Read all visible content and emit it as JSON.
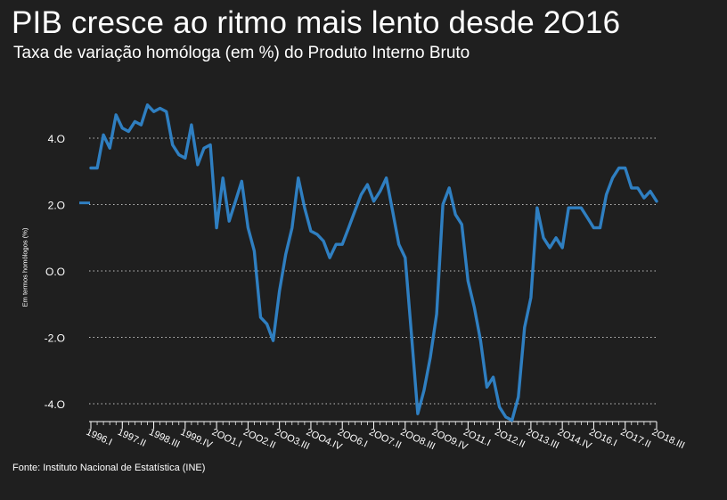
{
  "chart_data": {
    "type": "line",
    "title": "PIB cresce ao ritmo mais lento desde 2O16",
    "subtitle": "Taxa de variação homóloga (em %) do Produto Interno Bruto",
    "ylabel": "Em termos homólogos (%)",
    "xlabel": "",
    "source": "Fonte: Instituto Nacional de Estatística (INE)",
    "ylim": [
      -4.4,
      5.0
    ],
    "yticks": [
      -4.0,
      -2.0,
      0.0,
      2.0,
      4.0
    ],
    "ytick_labels": [
      "-4.O",
      "-2.O",
      "O.O",
      "2.O",
      "4.O"
    ],
    "grid": "horizontal-dotted",
    "color": "#2f7fc1",
    "x_start_index": 0,
    "xtick_indices": [
      0,
      5,
      10,
      15,
      20,
      25,
      30,
      35,
      40,
      45,
      50,
      55,
      60,
      65,
      70,
      75,
      80,
      85,
      90
    ],
    "xtick_labels": [
      "1996.I",
      "1997.II",
      "1998.III",
      "1999.IV",
      "2OO1.I",
      "2OO2.II",
      "2OO3.III",
      "2OO4.IV",
      "2OO6.I",
      "2OO7.II",
      "2OO8.III",
      "2OO9.IV",
      "2O11.I",
      "2O12.II",
      "2O13.III",
      "2O14.IV",
      "2O16.I",
      "2O17.II",
      "2O18.III"
    ],
    "series": [
      {
        "values": [
          3.1,
          3.1,
          4.1,
          3.7,
          4.7,
          4.3,
          4.2,
          4.5,
          4.4,
          5.0,
          4.8,
          4.9,
          4.8,
          3.8,
          3.5,
          3.4,
          4.4,
          3.2,
          3.7,
          3.8,
          1.3,
          2.8,
          1.5,
          2.1,
          2.7,
          1.3,
          0.6,
          -1.4,
          -1.6,
          -2.1,
          -0.6,
          0.5,
          1.3,
          2.8,
          1.9,
          1.2,
          1.1,
          0.9,
          0.4,
          0.8,
          0.8,
          1.3,
          1.8,
          2.3,
          2.6,
          2.1,
          2.4,
          2.8,
          1.8,
          0.8,
          0.4,
          -1.9,
          -4.3,
          -3.6,
          -2.6,
          -1.3,
          2.0,
          2.5,
          1.7,
          1.4,
          -0.3,
          -1.1,
          -2.1,
          -3.5,
          -3.2,
          -4.1,
          -4.4,
          -4.5,
          -3.8,
          -1.7,
          -0.8,
          1.9,
          1.0,
          0.7,
          1.0,
          0.7,
          1.9,
          1.9,
          1.9,
          1.6,
          1.3,
          1.3,
          2.3,
          2.8,
          3.1,
          3.1,
          2.5,
          2.5,
          2.2,
          2.4,
          2.1
        ]
      }
    ]
  }
}
